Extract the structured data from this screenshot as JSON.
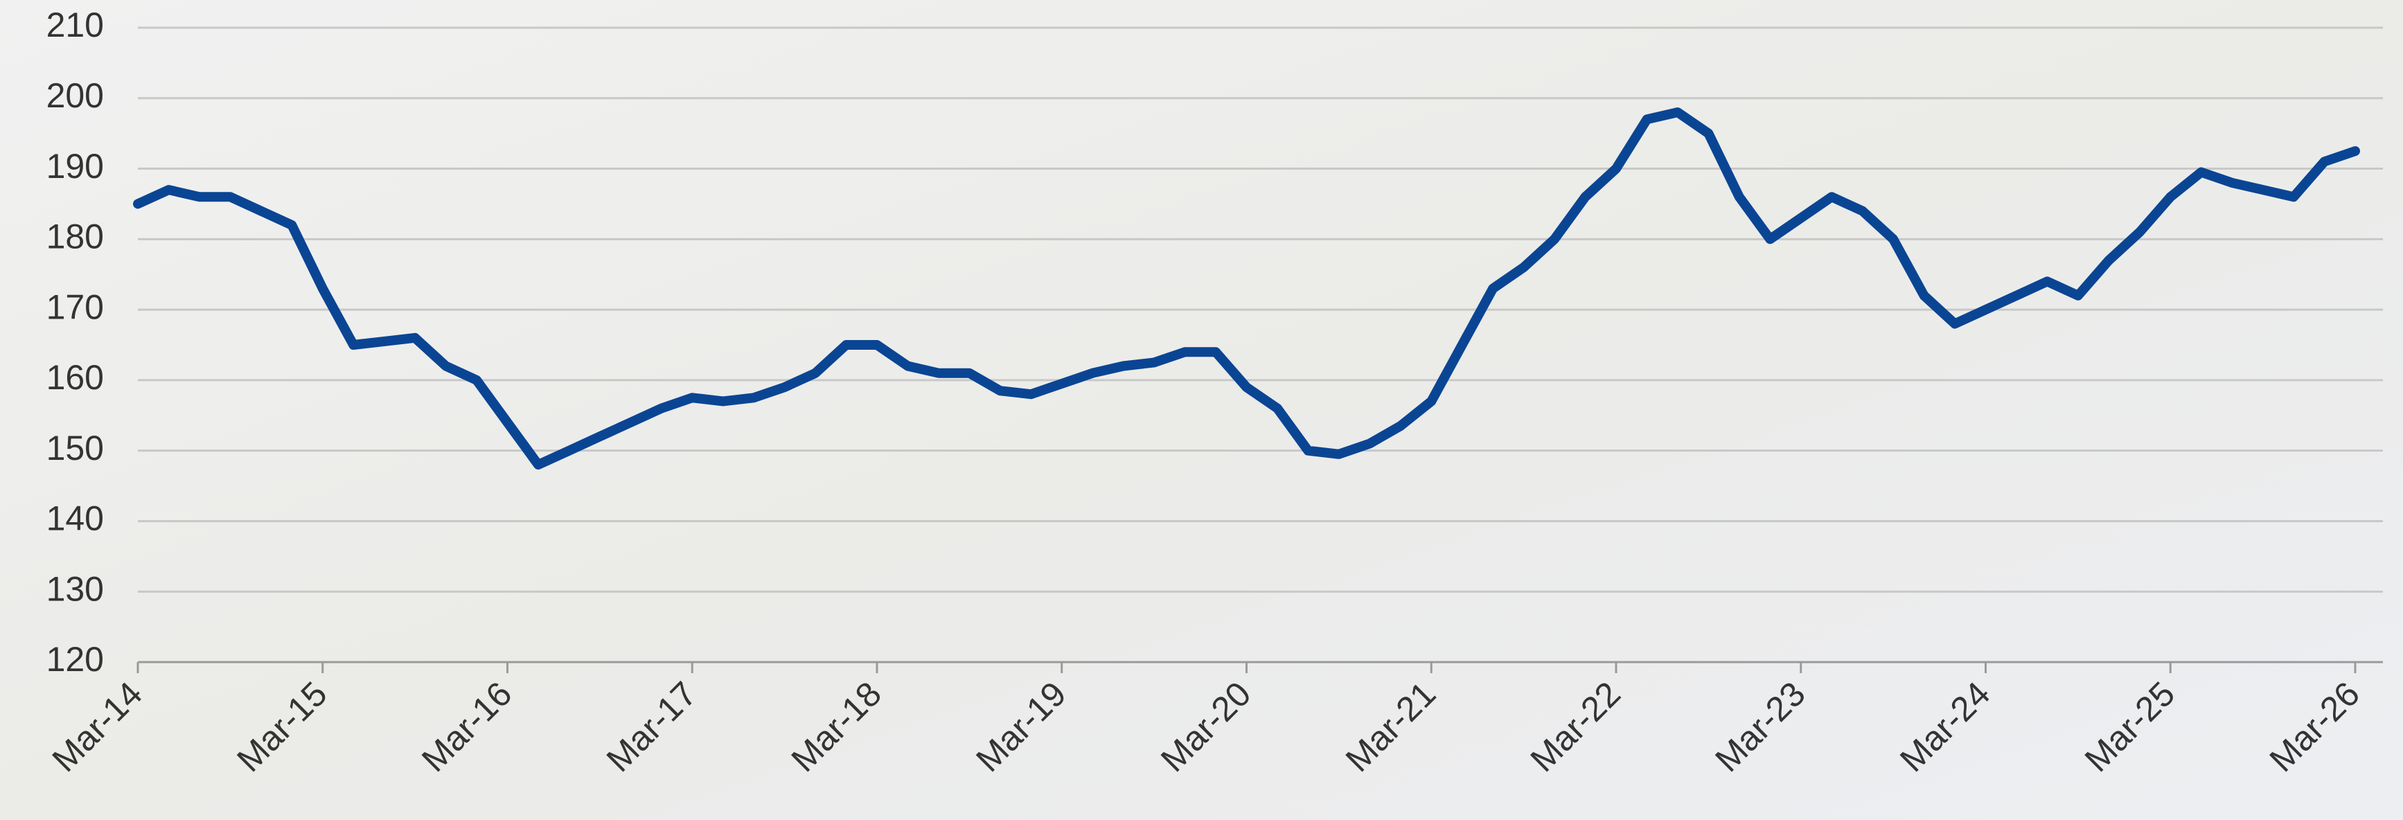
{
  "chart_data": {
    "type": "line",
    "categories": [
      "Mar-14",
      null,
      null,
      null,
      null,
      null,
      "Mar-15",
      null,
      null,
      null,
      null,
      null,
      "Mar-16",
      null,
      null,
      null,
      null,
      null,
      "Mar-17",
      null,
      null,
      null,
      null,
      null,
      "Mar-18",
      null,
      null,
      null,
      null,
      null,
      "Mar-19",
      null,
      null,
      null,
      null,
      null,
      "Mar-20",
      null,
      null,
      null,
      null,
      null,
      "Mar-21",
      null,
      null,
      null,
      null,
      null,
      "Mar-22",
      null,
      null,
      null,
      null,
      null,
      "Mar-23",
      null,
      null,
      null,
      null,
      null,
      "Mar-24",
      null,
      null,
      null,
      null,
      null,
      "Mar-25",
      null,
      null,
      null,
      null,
      null,
      "Mar-26"
    ],
    "series": [
      {
        "color": "#0a4594",
        "values": [
          185,
          187,
          186,
          186,
          184,
          182,
          173,
          165,
          165.5,
          166,
          162,
          160,
          154,
          148,
          150,
          152,
          154,
          156,
          157.5,
          157,
          157.5,
          159,
          161,
          165,
          165,
          162,
          161,
          161,
          158.5,
          158,
          159.5,
          161,
          162,
          162.5,
          164,
          164,
          159,
          156,
          150,
          149.5,
          151,
          153.5,
          157,
          165,
          173,
          176,
          180,
          186,
          190,
          197,
          198,
          195,
          186,
          180,
          183,
          186,
          184,
          180,
          172,
          168,
          170,
          172,
          174,
          172,
          177,
          181,
          186,
          189.5,
          188,
          187,
          186,
          191,
          192.5
        ]
      }
    ],
    "ylim": [
      120,
      210
    ],
    "yticks": [
      120,
      130,
      140,
      150,
      160,
      170,
      180,
      190,
      200,
      210
    ],
    "grid": true
  }
}
